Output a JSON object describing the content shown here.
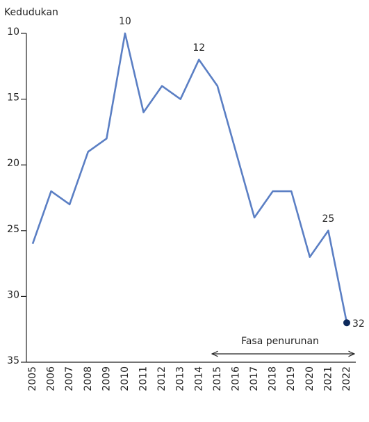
{
  "chart_data": {
    "type": "line",
    "y_label": "Kedudukan",
    "categories": [
      "2005",
      "2006",
      "2007",
      "2008",
      "2009",
      "2010",
      "2011",
      "2012",
      "2013",
      "2014",
      "2015",
      "2016",
      "2017",
      "2018",
      "2019",
      "2020",
      "2021",
      "2022"
    ],
    "values": [
      26,
      22,
      23,
      19,
      18,
      10,
      16,
      14,
      15,
      12,
      14,
      19,
      24,
      22,
      22,
      27,
      25,
      32
    ],
    "color": "#5b7fc4",
    "marker_color": "#0d2a5c",
    "labeled_points": [
      5,
      9,
      16,
      17
    ],
    "ylim": [
      10,
      35
    ],
    "yticks": [
      10,
      15,
      20,
      25,
      30,
      35
    ],
    "y_inverted": true,
    "annotation": "Fasa penurunan"
  }
}
